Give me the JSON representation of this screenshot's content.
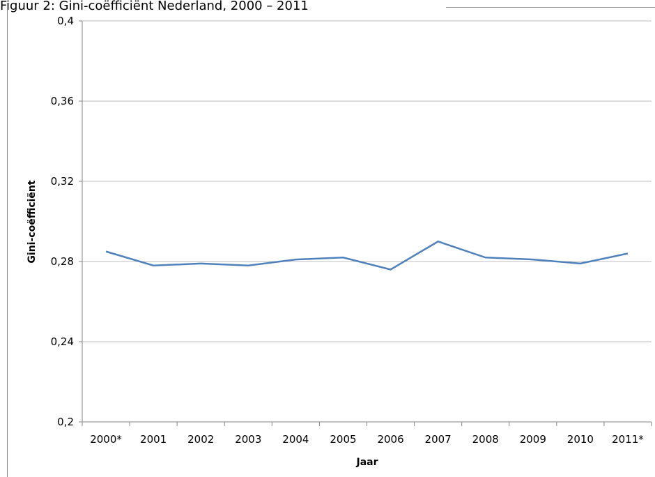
{
  "chart_data": {
    "type": "line",
    "title": "Figuur 2: Gini-coëfficiënt Nederland, 2000 – 2011",
    "x_label": "Jaar",
    "y_label": "Gini-coëfficiënt",
    "categories": [
      "2000*",
      "2001",
      "2002",
      "2003",
      "2004",
      "2005",
      "2006",
      "2007",
      "2008",
      "2009",
      "2010",
      "2011*"
    ],
    "values": [
      0.285,
      0.278,
      0.279,
      0.278,
      0.281,
      0.282,
      0.276,
      0.29,
      0.282,
      0.281,
      0.279,
      0.284
    ],
    "color": "#4f81bd",
    "ylim": [
      0.2,
      0.4
    ],
    "yticks": [
      {
        "value": 0.2,
        "label": "0,2"
      },
      {
        "value": 0.24,
        "label": "0,24"
      },
      {
        "value": 0.28,
        "label": "0,28"
      },
      {
        "value": 0.32,
        "label": "0,32"
      },
      {
        "value": 0.36,
        "label": "0,36"
      },
      {
        "value": 0.4,
        "label": "0,4"
      }
    ],
    "grid": true
  }
}
